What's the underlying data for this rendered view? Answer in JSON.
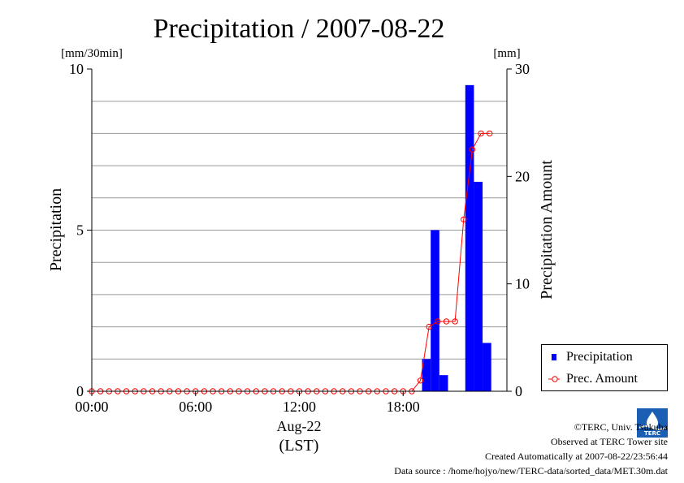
{
  "chart_data": {
    "type": "bar",
    "title": "Precipitation / 2007-08-22",
    "ylabel": "Precipitation",
    "ylabel_right": "Precipitation Amount",
    "yunit_left": "[mm/30min]",
    "yunit_right": "[mm]",
    "xlabel": "Aug-22",
    "xlabel_sub": "(LST)",
    "x_ticks": [
      "00:00",
      "06:00",
      "12:00",
      "18:00"
    ],
    "ylim": [
      0,
      10
    ],
    "ylim_right": [
      0,
      30
    ],
    "y_ticks_left": [
      "0",
      "5",
      "10"
    ],
    "y_ticks_right": [
      "0",
      "10",
      "20",
      "30"
    ],
    "grid": "horizontal",
    "legend_position": "lower-right, outside plot",
    "x_hours": [
      0,
      0.5,
      1,
      1.5,
      2,
      2.5,
      3,
      3.5,
      4,
      4.5,
      5,
      5.5,
      6,
      6.5,
      7,
      7.5,
      8,
      8.5,
      9,
      9.5,
      10,
      10.5,
      11,
      11.5,
      12,
      12.5,
      13,
      13.5,
      14,
      14.5,
      15,
      15.5,
      16,
      16.5,
      17,
      17.5,
      18,
      18.5,
      19,
      19.5,
      20,
      20.5,
      21,
      21.5,
      22,
      22.5,
      23,
      23.5
    ],
    "series": [
      {
        "name": "Precipitation",
        "style": "bar",
        "axis": "left",
        "color": "#0000ff",
        "values": [
          0,
          0,
          0,
          0,
          0,
          0,
          0,
          0,
          0,
          0,
          0,
          0,
          0,
          0,
          0,
          0,
          0,
          0,
          0,
          0,
          0,
          0,
          0,
          0,
          0,
          0,
          0,
          0,
          0,
          0,
          0,
          0,
          0,
          0,
          0,
          0,
          0,
          0,
          1.0,
          5.0,
          0.5,
          0,
          0,
          9.5,
          6.5,
          1.5,
          0,
          0
        ]
      },
      {
        "name": "Prec. Amount",
        "style": "line-circle",
        "axis": "right",
        "color": "#ff0000",
        "values": [
          0,
          0,
          0,
          0,
          0,
          0,
          0,
          0,
          0,
          0,
          0,
          0,
          0,
          0,
          0,
          0,
          0,
          0,
          0,
          0,
          0,
          0,
          0,
          0,
          0,
          0,
          0,
          0,
          0,
          0,
          0,
          0,
          0,
          0,
          0,
          0,
          0,
          0,
          1.0,
          6.0,
          6.5,
          6.5,
          6.5,
          16.0,
          22.5,
          24.0,
          24.0,
          null
        ]
      }
    ]
  },
  "legend": {
    "items": [
      "Precipitation",
      "Prec. Amount"
    ]
  },
  "footer": {
    "copyright": "©TERC, Univ. Tsukuba",
    "observed": "Observed at TERC Tower site",
    "created": "Created Automatically at 2007-08-22/23:56:44",
    "source": "Data source : /home/hojyo/new/TERC-data/sorted_data/MET.30m.dat"
  },
  "logo": {
    "text": "TERC"
  }
}
